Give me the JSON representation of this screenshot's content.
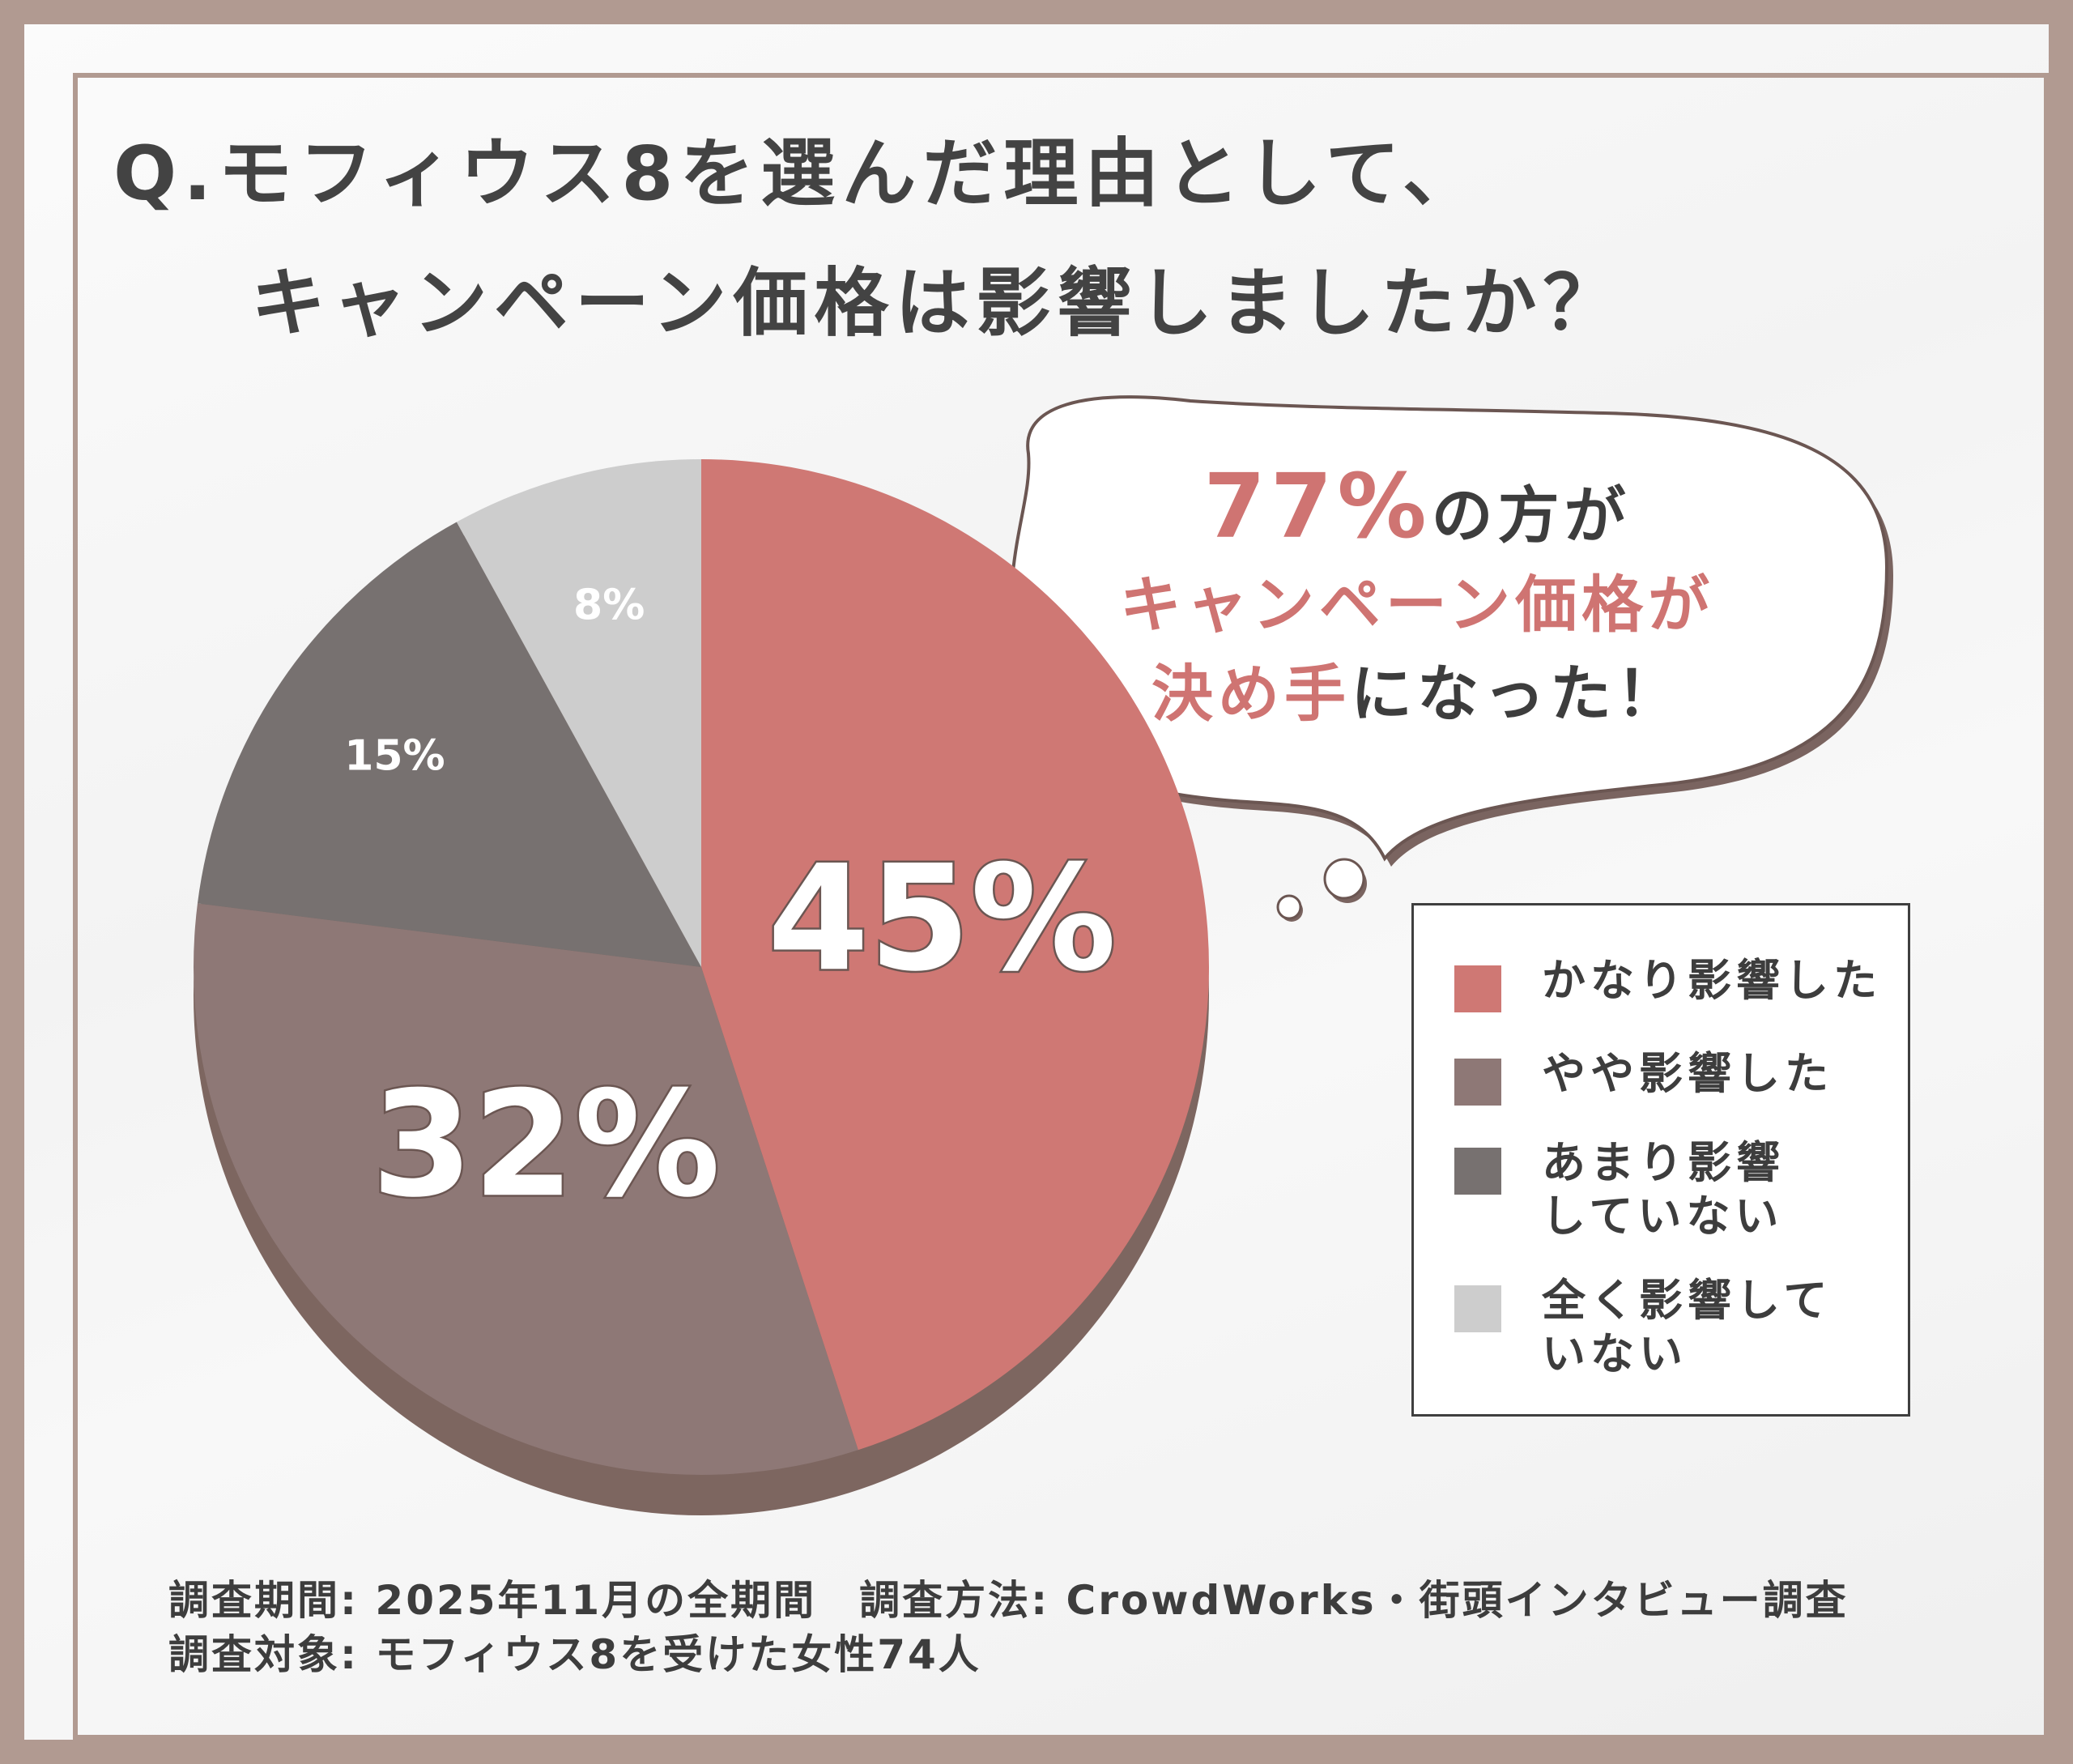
{
  "title": {
    "line1": "Q.モフィウス8を選んだ理由として、",
    "line2": "キャンペーン価格は影響しましたか？"
  },
  "callout": {
    "big": "77%",
    "part1": "の方が",
    "line2": "キャンペーン価格が",
    "line3_accent": "決め手",
    "line3_rest": "になった！"
  },
  "colors": {
    "accent": "#cf7472",
    "frame": "#b19a91"
  },
  "chart_data": {
    "type": "pie",
    "title": "Q.モフィウス8を選んだ理由として、キャンペーン価格は影響しましたか？",
    "series": [
      {
        "name": "かなり影響した",
        "value": 45,
        "label": "45%",
        "color": "#cf7874"
      },
      {
        "name": "やや影響した",
        "value": 32,
        "label": "32%",
        "color": "#8e7876"
      },
      {
        "name": "あまり影響\nしていない",
        "value": 15,
        "label": "15%",
        "color": "#777170"
      },
      {
        "name": "全く影響して\nいない",
        "value": 8,
        "label": "8%",
        "color": "#cdcdcd"
      }
    ],
    "legend_position": "right"
  },
  "footer": {
    "line1": "調査期間: 2025年11月の全期間　調査方法: CrowdWorks・街頭インタビュー調査",
    "line2": "調査対象: モフィウス8を受けた女性74人"
  }
}
